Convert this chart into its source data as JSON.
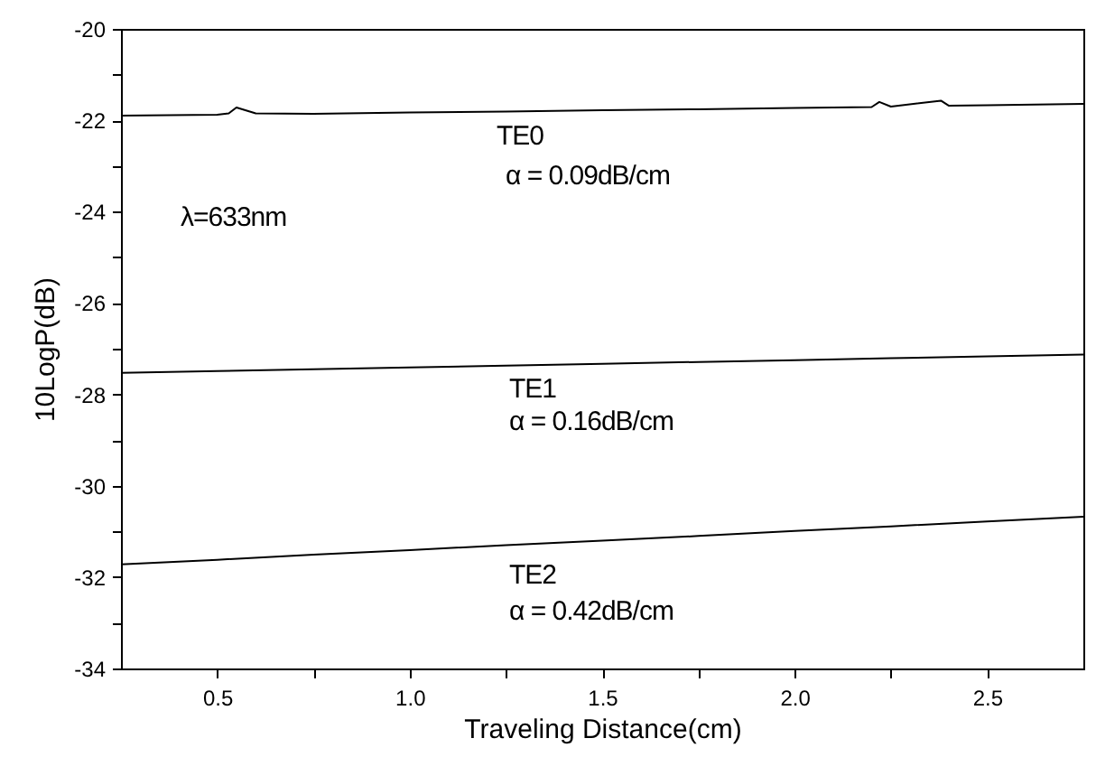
{
  "chart_data": {
    "type": "line",
    "xlabel": "Traveling Distance(cm)",
    "ylabel": "10LogP(dB)",
    "xlim": [
      0.25,
      2.75
    ],
    "ylim": [
      -34,
      -20
    ],
    "xticks": [
      {
        "value": 0.5,
        "label": "0.5"
      },
      {
        "value": 0.75,
        "label": null
      },
      {
        "value": 1,
        "label": "1.0"
      },
      {
        "value": 1.25,
        "label": null
      },
      {
        "value": 1.5,
        "label": "1.5"
      },
      {
        "value": 1.75,
        "label": null
      },
      {
        "value": 2,
        "label": "2.0"
      },
      {
        "value": 2.25,
        "label": null
      },
      {
        "value": 2.5,
        "label": "2.5"
      }
    ],
    "yticks": [
      -34,
      {
        "value": -33,
        "label": null
      },
      -32,
      {
        "value": -31,
        "label": null
      },
      -30,
      {
        "value": -29,
        "label": null
      },
      -28,
      {
        "value": -27,
        "label": null
      },
      -26,
      {
        "value": -25,
        "label": null
      },
      -24,
      {
        "value": -23,
        "label": null
      },
      -22,
      {
        "value": -21,
        "label": null
      },
      -20
    ],
    "grid": false,
    "marker": "none",
    "line_style": "solid",
    "series": [
      {
        "color": "#000000",
        "x": [
          0.25,
          0.5,
          0.53,
          0.55,
          0.6,
          0.75,
          1,
          1.25,
          1.5,
          1.75,
          2,
          2.2,
          2.22,
          2.25,
          2.38,
          2.4,
          2.5,
          2.75
        ],
        "values": [
          -21.9,
          -21.88,
          -21.85,
          -21.72,
          -21.85,
          -21.86,
          -21.83,
          -21.81,
          -21.78,
          -21.76,
          -21.73,
          -21.71,
          -21.6,
          -21.7,
          -21.57,
          -21.68,
          -21.67,
          -21.64
        ]
      },
      {
        "color": "#000000",
        "x": [
          0.25,
          0.5,
          0.75,
          1,
          1.25,
          1.5,
          1.75,
          2,
          2.25,
          2.5,
          2.75
        ],
        "values": [
          -27.53,
          -27.49,
          -27.45,
          -27.41,
          -27.37,
          -27.33,
          -27.29,
          -27.25,
          -27.21,
          -27.17,
          -27.13
        ]
      },
      {
        "color": "#000000",
        "x": [
          0.25,
          0.5,
          0.75,
          1,
          1.25,
          1.5,
          1.75,
          2,
          2.25,
          2.5,
          2.75
        ],
        "values": [
          -31.72,
          -31.62,
          -31.51,
          -31.41,
          -31.3,
          -31.2,
          -31.1,
          -30.99,
          -30.89,
          -30.78,
          -30.68
        ]
      }
    ],
    "annotations": [
      "TE0",
      "α = 0.09dB/cm",
      "λ=633nm",
      "TE1",
      "α = 0.16dB/cm",
      "TE2",
      "α = 0.42dB/cm"
    ]
  }
}
